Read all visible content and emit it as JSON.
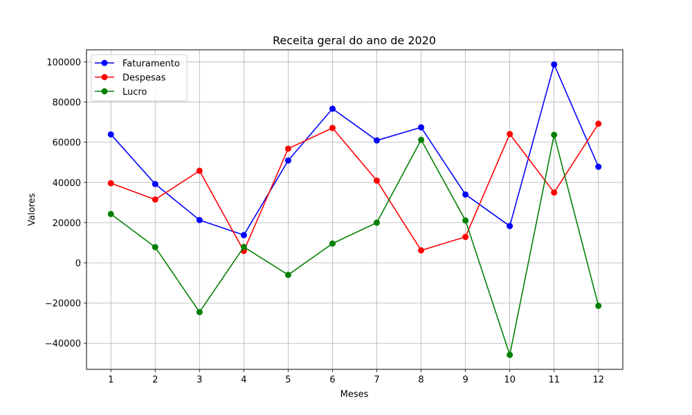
{
  "chart_data": {
    "type": "line",
    "title": "Receita geral do ano de 2020",
    "xlabel": "Meses",
    "ylabel": "Valores",
    "x": [
      1,
      2,
      3,
      4,
      5,
      6,
      7,
      8,
      9,
      10,
      11,
      12
    ],
    "xlim": [
      0.45,
      12.55
    ],
    "ylim": [
      -53000,
      106000
    ],
    "yticks": [
      -40000,
      -20000,
      0,
      20000,
      40000,
      60000,
      80000,
      100000
    ],
    "ytick_labels": [
      "−40000",
      "−20000",
      "0",
      "20000",
      "40000",
      "60000",
      "80000",
      "100000"
    ],
    "grid": true,
    "legend_position": "top-left",
    "series": [
      {
        "name": "Faturamento",
        "color": "#0000ff",
        "values": [
          63900,
          39200,
          21300,
          13800,
          50900,
          76700,
          60900,
          67400,
          34000,
          18300,
          98700,
          47800
        ]
      },
      {
        "name": "Despesas",
        "color": "#ff0000",
        "values": [
          39600,
          31500,
          45800,
          5900,
          56800,
          67100,
          40900,
          6200,
          12900,
          64100,
          35000,
          69200
        ]
      },
      {
        "name": "Lucro",
        "color": "#008000",
        "values": [
          24300,
          7800,
          -24500,
          7900,
          -6000,
          9600,
          20000,
          61200,
          21100,
          -45800,
          63700,
          -21400
        ]
      }
    ]
  }
}
